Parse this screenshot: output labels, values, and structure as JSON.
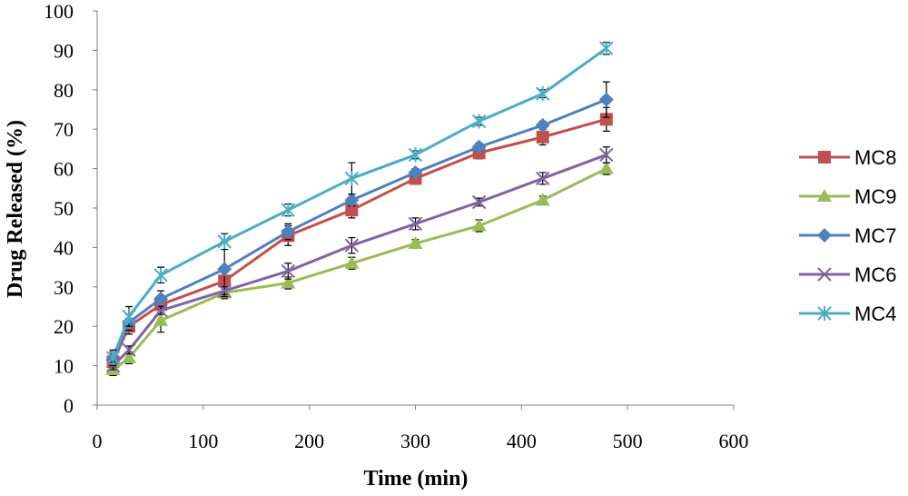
{
  "chart_data": {
    "type": "line",
    "title": "",
    "xlabel": "Time (min)",
    "ylabel": "Drug Released (%)",
    "xlim": [
      0,
      600
    ],
    "ylim": [
      0,
      100
    ],
    "xticks": [
      0,
      100,
      200,
      300,
      400,
      500,
      600
    ],
    "yticks": [
      0,
      10,
      20,
      30,
      40,
      50,
      60,
      70,
      80,
      90,
      100
    ],
    "grid": false,
    "legend_position": "right",
    "x": [
      15,
      30,
      60,
      120,
      180,
      240,
      300,
      360,
      420,
      480
    ],
    "series": [
      {
        "name": "MC8",
        "color": "#c0504d",
        "marker": "square",
        "values": [
          11,
          20,
          25.5,
          31.5,
          43,
          49.5,
          57.5,
          64,
          68,
          72.5
        ],
        "errors": [
          2,
          2,
          2,
          3,
          2.5,
          2,
          1.5,
          1.5,
          2,
          3
        ]
      },
      {
        "name": "MC9",
        "color": "#9bbb59",
        "marker": "triangle",
        "values": [
          9,
          12,
          21.5,
          28.5,
          31,
          36,
          41,
          45.5,
          52,
          60
        ],
        "errors": [
          1.5,
          1.5,
          3,
          1.5,
          1.5,
          1.5,
          1,
          1.5,
          1,
          1.5
        ]
      },
      {
        "name": "MC7",
        "color": "#4f81bd",
        "marker": "diamond",
        "values": [
          11.5,
          21,
          27,
          34.5,
          44,
          52,
          59,
          65.5,
          71,
          77.5
        ],
        "errors": [
          2,
          2,
          2,
          7,
          2,
          1.5,
          1,
          1,
          1,
          4.5
        ]
      },
      {
        "name": "MC6",
        "color": "#8064a2",
        "marker": "x",
        "values": [
          10,
          14,
          24,
          29,
          34,
          40.5,
          46,
          51.5,
          57.5,
          63.5
        ],
        "errors": [
          1,
          1,
          1,
          1,
          2,
          2,
          1.5,
          1,
          1.5,
          2
        ]
      },
      {
        "name": "MC4",
        "color": "#4bacc6",
        "marker": "star",
        "values": [
          12,
          22.5,
          33,
          41.5,
          49.5,
          57.5,
          63.5,
          72,
          79,
          90.5
        ],
        "errors": [
          2,
          2.5,
          2,
          2,
          1.5,
          4,
          1,
          1,
          1,
          1.5
        ]
      }
    ]
  }
}
